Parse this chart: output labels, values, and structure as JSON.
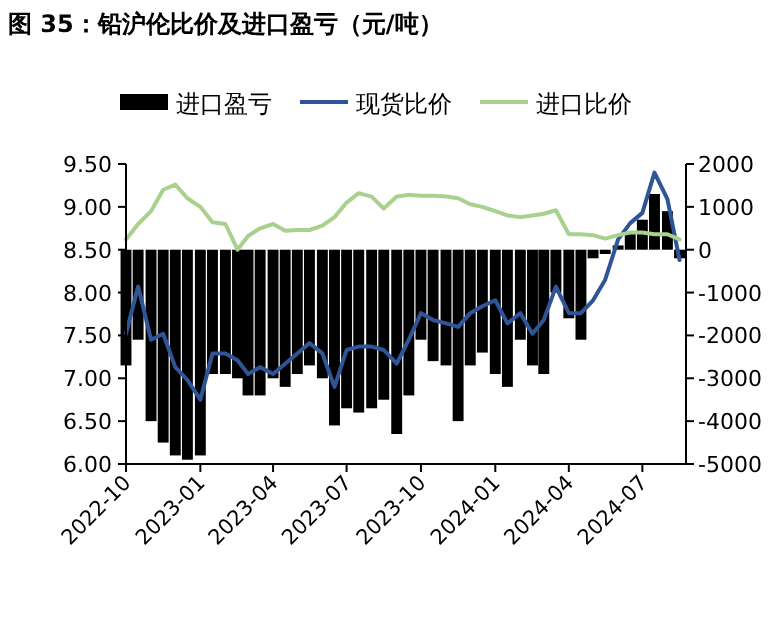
{
  "chart_data": {
    "type": "bar",
    "title": "图 35：铅沪伦比价及进口盈亏（元/吨）",
    "legend": "top",
    "x": [
      "2022-10-01",
      "2022-10-16",
      "2022-11-01",
      "2022-11-16",
      "2022-12-01",
      "2022-12-16",
      "2023-01-01",
      "2023-01-16",
      "2023-02-01",
      "2023-02-16",
      "2023-03-01",
      "2023-03-16",
      "2023-04-01",
      "2023-04-16",
      "2023-05-01",
      "2023-05-16",
      "2023-06-01",
      "2023-06-16",
      "2023-07-01",
      "2023-07-16",
      "2023-08-01",
      "2023-08-16",
      "2023-09-01",
      "2023-09-16",
      "2023-10-01",
      "2023-10-16",
      "2023-11-01",
      "2023-11-16",
      "2023-12-01",
      "2023-12-16",
      "2024-01-01",
      "2024-01-16",
      "2024-02-01",
      "2024-02-16",
      "2024-03-01",
      "2024-03-16",
      "2024-04-01",
      "2024-04-16",
      "2024-05-01",
      "2024-05-16",
      "2024-06-01",
      "2024-06-16",
      "2024-07-01",
      "2024-07-16",
      "2024-08-01",
      "2024-08-16"
    ],
    "series": [
      {
        "name": "进口盈亏",
        "axis": "y2",
        "color": "#000000",
        "values": [
          -2700,
          -2100,
          -4000,
          -4500,
          -4800,
          -4900,
          -4800,
          -2900,
          -2900,
          -3000,
          -3400,
          -3400,
          -3000,
          -3200,
          -2900,
          -2700,
          -3000,
          -4100,
          -3700,
          -3800,
          -3700,
          -3500,
          -4300,
          -3400,
          -2100,
          -2600,
          -2700,
          -4000,
          -2700,
          -2400,
          -2900,
          -3200,
          -2100,
          -2700,
          -2900,
          -1000,
          -1600,
          -2100,
          -200,
          -100,
          100,
          400,
          700,
          1300,
          900,
          -200
        ]
      },
      {
        "name": "现货比价",
        "type": "line",
        "color": "#2f5597",
        "values": [
          7.52,
          8.07,
          7.45,
          7.52,
          7.13,
          6.98,
          6.75,
          7.29,
          7.29,
          7.21,
          7.05,
          7.13,
          7.05,
          7.17,
          7.29,
          7.41,
          7.29,
          6.9,
          7.33,
          7.37,
          7.37,
          7.33,
          7.17,
          7.45,
          7.76,
          7.68,
          7.64,
          7.6,
          7.76,
          7.84,
          7.91,
          7.64,
          7.76,
          7.52,
          7.68,
          8.07,
          7.76,
          7.76,
          7.91,
          8.15,
          8.62,
          8.81,
          8.93,
          9.4,
          9.09,
          8.38
        ]
      },
      {
        "name": "进口比价",
        "type": "line",
        "color": "#a9d18e",
        "values": [
          8.62,
          8.8,
          8.95,
          9.2,
          9.26,
          9.1,
          9.0,
          8.82,
          8.8,
          8.5,
          8.66,
          8.75,
          8.8,
          8.72,
          8.73,
          8.73,
          8.78,
          8.88,
          9.05,
          9.16,
          9.12,
          8.98,
          9.12,
          9.14,
          9.13,
          9.13,
          9.12,
          9.1,
          9.03,
          9.0,
          8.95,
          8.9,
          8.88,
          8.9,
          8.92,
          8.96,
          8.68,
          8.68,
          8.67,
          8.63,
          8.67,
          8.7,
          8.7,
          8.68,
          8.68,
          8.62
        ]
      }
    ],
    "xlim": [
      "2022-10-01",
      "2024-08-24"
    ],
    "xticks": [
      "2022-10",
      "2023-01",
      "2023-04",
      "2023-07",
      "2023-10",
      "2024-01",
      "2024-04",
      "2024-07"
    ],
    "ylim": [
      6,
      9.5
    ],
    "yticks": [
      {
        "value": 6,
        "label": "6.00"
      },
      {
        "value": 6.5,
        "label": "6.50"
      },
      {
        "value": 7,
        "label": "7.00"
      },
      {
        "value": 7.5,
        "label": "7.50"
      },
      {
        "value": 8,
        "label": "8.00"
      },
      {
        "value": 8.5,
        "label": "8.50"
      },
      {
        "value": 9,
        "label": "9.00"
      },
      {
        "value": 9.5,
        "label": "9.50"
      }
    ],
    "y2lim": [
      -5000,
      2000
    ],
    "y2ticks": [
      -5000,
      -4000,
      -3000,
      -2000,
      -1000,
      0,
      1000,
      2000
    ]
  }
}
